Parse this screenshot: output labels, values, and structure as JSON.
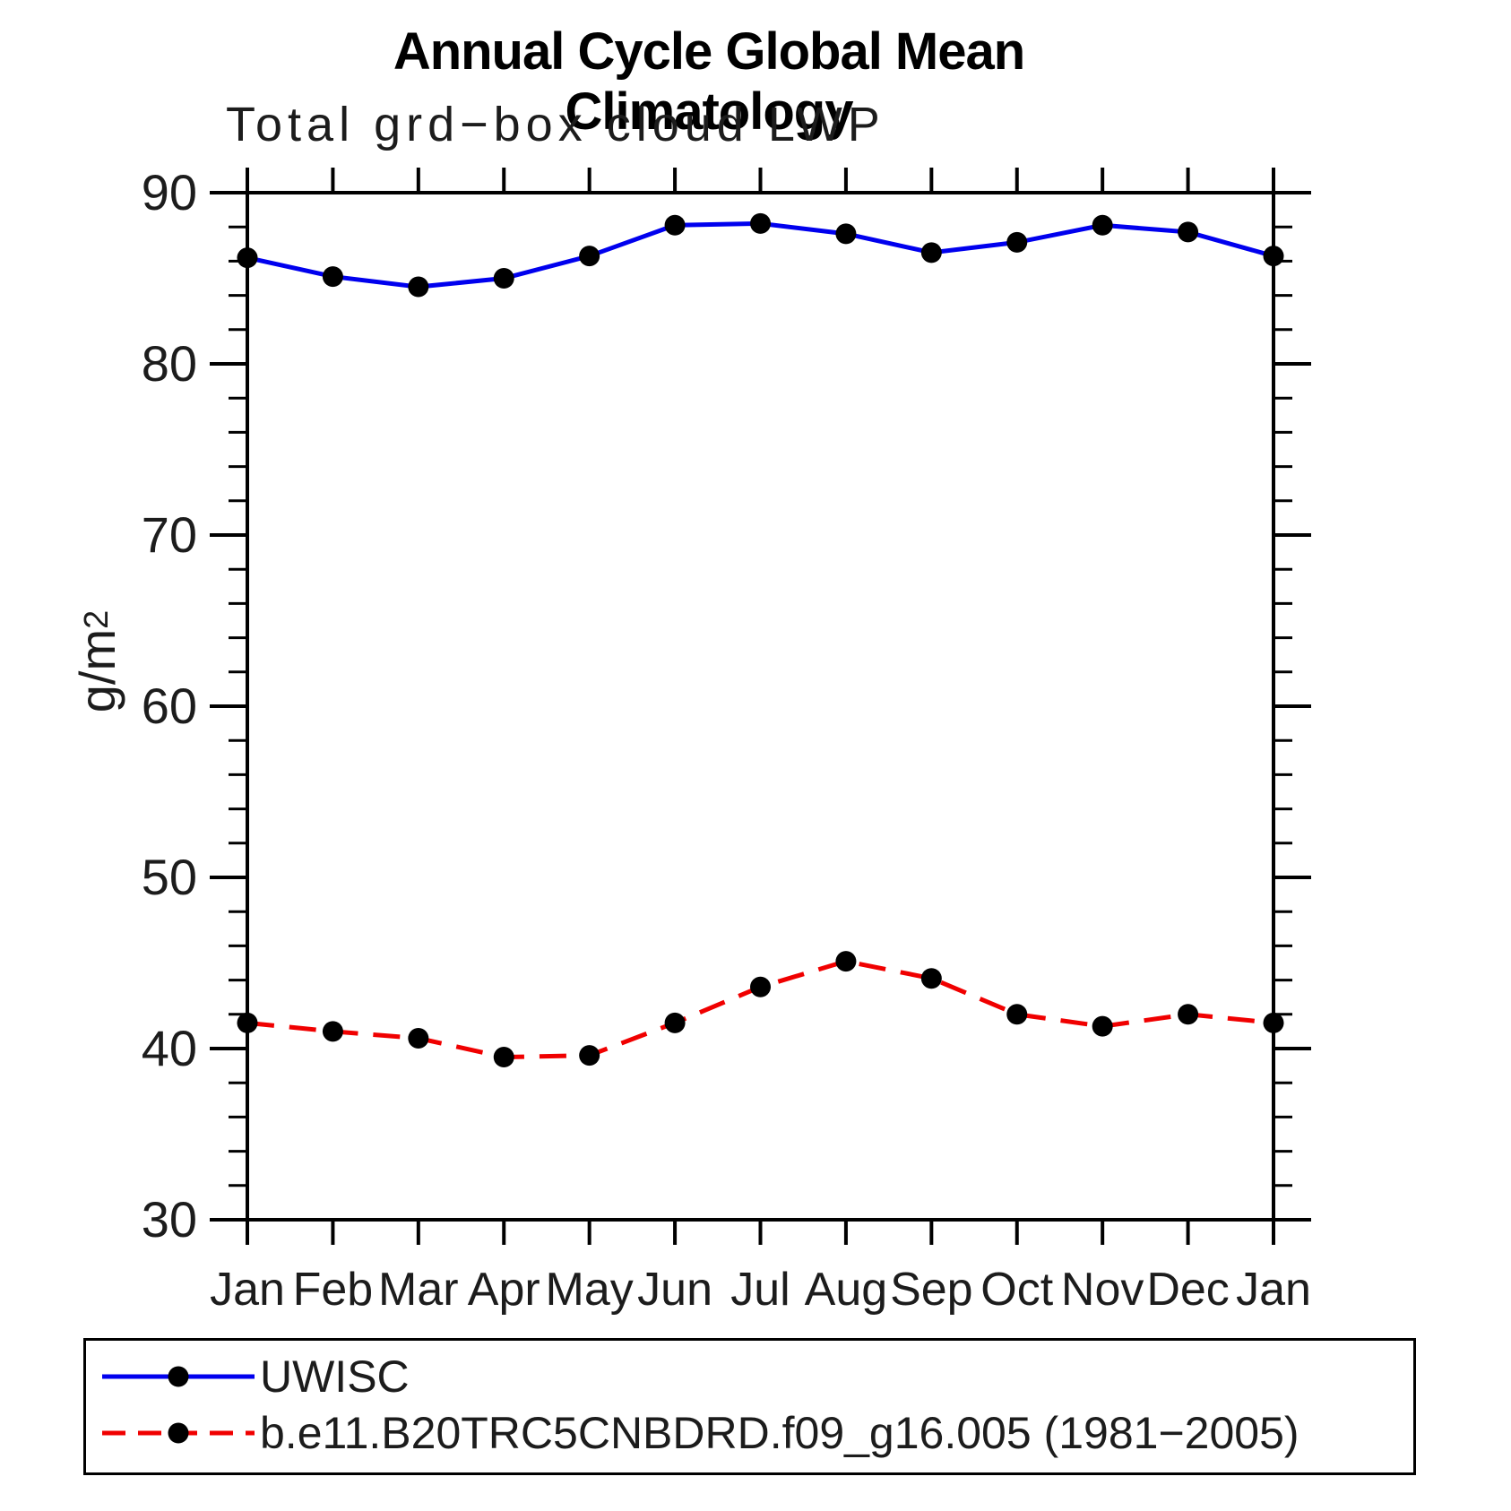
{
  "page": {
    "title": "Annual Cycle Global Mean Climatology",
    "subtitle": "Total grd−box cloud LWP"
  },
  "axes": {
    "ylabel_base": "g/m",
    "ylabel_exponent": "2"
  },
  "chart_data": {
    "type": "line",
    "title": "Annual Cycle Global Mean Climatology",
    "subtitle": "Total grd−box cloud LWP",
    "ylabel": "g/m^2",
    "categories": [
      "Jan",
      "Feb",
      "Mar",
      "Apr",
      "May",
      "Jun",
      "Jul",
      "Aug",
      "Sep",
      "Oct",
      "Nov",
      "Dec",
      "Jan"
    ],
    "ylim": [
      30,
      90
    ],
    "ytick_major_interval": 10,
    "ytick_minor_interval": 2,
    "ytick_labels": [
      "90",
      "80",
      "70",
      "60",
      "50",
      "40",
      "30"
    ],
    "grid": "off",
    "legend_position": "bottom-left box",
    "colors": {
      "axis": "#000000",
      "marker": "#000000",
      "uwisc": "#0000ee",
      "model": "#f00000"
    },
    "series": [
      {
        "name": "UWISC",
        "style": "solid",
        "color": "#0000ee",
        "values": [
          86.2,
          85.1,
          84.5,
          85.0,
          86.3,
          88.1,
          88.2,
          87.6,
          86.5,
          87.1,
          88.1,
          87.7,
          86.3
        ]
      },
      {
        "name": "b.e11.B20TRC5CNBDRD.f09_g16.005 (1981−2005)",
        "style": "dashed",
        "color": "#f00000",
        "values": [
          41.5,
          41.0,
          40.6,
          39.5,
          39.6,
          41.5,
          43.6,
          45.1,
          44.1,
          42.0,
          41.3,
          42.0,
          41.5
        ]
      }
    ]
  }
}
